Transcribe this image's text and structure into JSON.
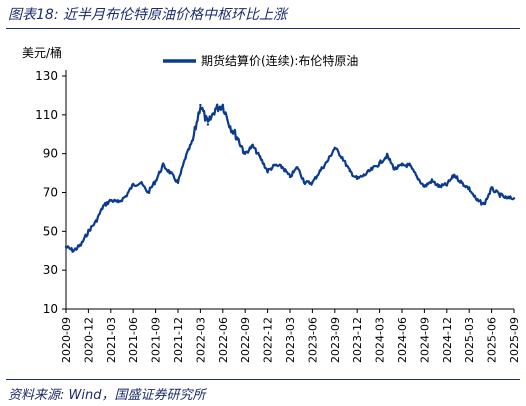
{
  "figure": {
    "title": "图表18:  近半月布伦特原油价格中枢环比上涨",
    "source": "资料来源:  Wind，国盛证券研究所"
  },
  "chart_data": {
    "type": "line",
    "ylabel": "美元/桶",
    "ylim": [
      10,
      130
    ],
    "yticks": [
      10,
      30,
      50,
      70,
      90,
      110,
      130
    ],
    "xlim": [
      "2020-09",
      "2025-09"
    ],
    "xticks": [
      "2020-09",
      "2020-12",
      "2021-03",
      "2021-06",
      "2021-09",
      "2021-12",
      "2022-03",
      "2022-06",
      "2022-09",
      "2022-12",
      "2023-03",
      "2023-06",
      "2023-09",
      "2023-12",
      "2024-03",
      "2024-06",
      "2024-09",
      "2024-12",
      "2025-03",
      "2025-06",
      "2025-09"
    ],
    "legend_position": "top",
    "grid": false,
    "series": [
      {
        "name": "期货结算价(连续):布伦特原油",
        "color": "#0b3b8f",
        "points": [
          [
            "2020-09",
            42
          ],
          [
            "2020-10",
            40
          ],
          [
            "2020-11",
            43
          ],
          [
            "2020-12",
            50
          ],
          [
            "2021-01",
            55
          ],
          [
            "2021-02",
            63
          ],
          [
            "2021-03",
            66
          ],
          [
            "2021-04",
            65
          ],
          [
            "2021-05",
            68
          ],
          [
            "2021-06",
            74
          ],
          [
            "2021-07",
            75
          ],
          [
            "2021-08",
            70
          ],
          [
            "2021-09",
            76
          ],
          [
            "2021-10",
            84
          ],
          [
            "2021-11",
            80
          ],
          [
            "2021-12",
            75
          ],
          [
            "2022-01",
            88
          ],
          [
            "2022-02",
            97
          ],
          [
            "2022-03",
            115
          ],
          [
            "2022-04",
            105
          ],
          [
            "2022-05",
            113
          ],
          [
            "2022-06",
            115
          ],
          [
            "2022-07",
            104
          ],
          [
            "2022-08",
            98
          ],
          [
            "2022-09",
            90
          ],
          [
            "2022-10",
            94
          ],
          [
            "2022-11",
            88
          ],
          [
            "2022-12",
            81
          ],
          [
            "2023-01",
            84
          ],
          [
            "2023-02",
            83
          ],
          [
            "2023-03",
            78
          ],
          [
            "2023-04",
            83
          ],
          [
            "2023-05",
            75
          ],
          [
            "2023-06",
            75
          ],
          [
            "2023-07",
            81
          ],
          [
            "2023-08",
            86
          ],
          [
            "2023-09",
            93
          ],
          [
            "2023-10",
            88
          ],
          [
            "2023-11",
            81
          ],
          [
            "2023-12",
            77
          ],
          [
            "2024-01",
            79
          ],
          [
            "2024-02",
            82
          ],
          [
            "2024-03",
            85
          ],
          [
            "2024-04",
            89
          ],
          [
            "2024-05",
            82
          ],
          [
            "2024-06",
            84
          ],
          [
            "2024-07",
            84
          ],
          [
            "2024-08",
            78
          ],
          [
            "2024-09",
            73
          ],
          [
            "2024-10",
            76
          ],
          [
            "2024-11",
            73
          ],
          [
            "2024-12",
            74
          ],
          [
            "2025-01",
            79
          ],
          [
            "2025-02",
            75
          ],
          [
            "2025-03",
            72
          ],
          [
            "2025-04",
            66
          ],
          [
            "2025-05",
            64
          ],
          [
            "2025-06",
            72
          ],
          [
            "2025-07",
            69
          ],
          [
            "2025-08",
            67
          ],
          [
            "2025-09",
            67
          ]
        ]
      }
    ]
  }
}
